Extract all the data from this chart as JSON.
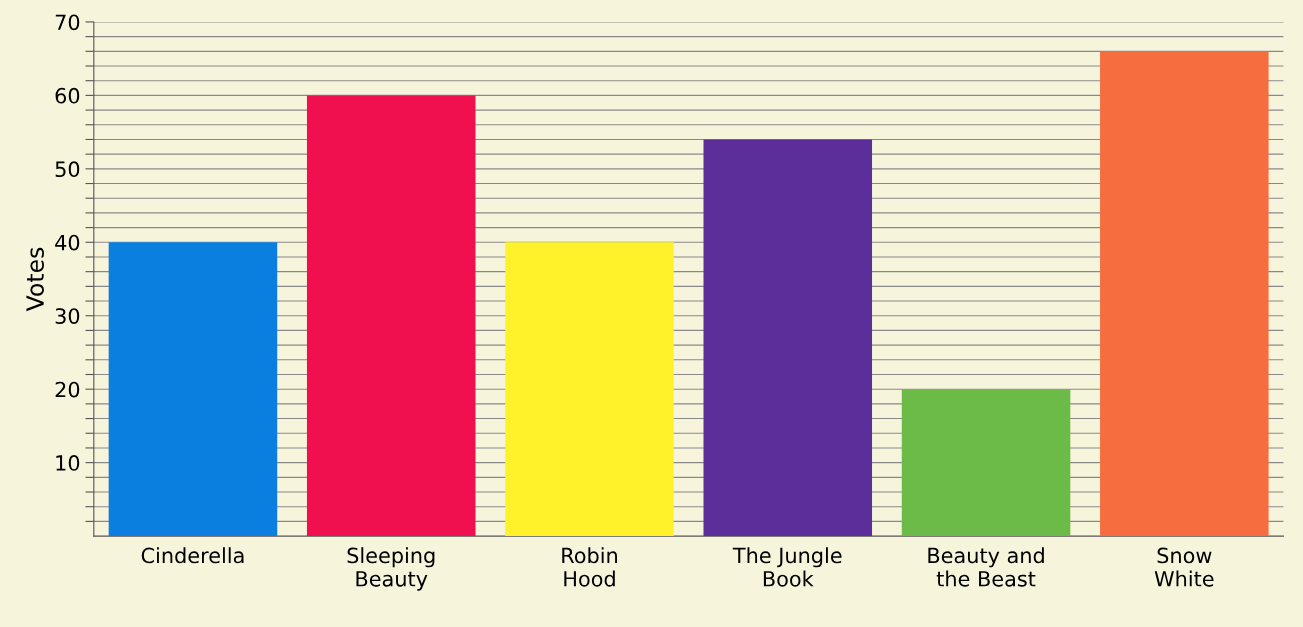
{
  "chart_data": {
    "type": "bar",
    "ylabel": "Votes",
    "categories": [
      "Cinderella",
      "Sleeping\nBeauty",
      "Robin\nHood",
      "The Jungle\nBook",
      "Beauty and\nthe Beast",
      "Snow\nWhite"
    ],
    "values": [
      40,
      60,
      40,
      54,
      20,
      66
    ],
    "colors": [
      "#0a7fe0",
      "#f0104f",
      "#fff22a",
      "#5c2e9a",
      "#6cbb48",
      "#f66d3f"
    ],
    "ylim": [
      0,
      70
    ],
    "yticks": [
      {
        "value": 2,
        "label": null
      },
      {
        "value": 4,
        "label": null
      },
      {
        "value": 6,
        "label": null
      },
      {
        "value": 8,
        "label": null
      },
      10,
      {
        "value": 12,
        "label": null
      },
      {
        "value": 14,
        "label": null
      },
      {
        "value": 16,
        "label": null
      },
      {
        "value": 18,
        "label": null
      },
      20,
      {
        "value": 22,
        "label": null
      },
      {
        "value": 24,
        "label": null
      },
      {
        "value": 26,
        "label": null
      },
      {
        "value": 28,
        "label": null
      },
      30,
      {
        "value": 32,
        "label": null
      },
      {
        "value": 34,
        "label": null
      },
      {
        "value": 36,
        "label": null
      },
      {
        "value": 38,
        "label": null
      },
      40,
      {
        "value": 42,
        "label": null
      },
      {
        "value": 44,
        "label": null
      },
      {
        "value": 46,
        "label": null
      },
      {
        "value": 48,
        "label": null
      },
      50,
      {
        "value": 52,
        "label": null
      },
      {
        "value": 54,
        "label": null
      },
      {
        "value": 56,
        "label": null
      },
      {
        "value": 58,
        "label": null
      },
      60,
      {
        "value": 62,
        "label": null
      },
      {
        "value": 64,
        "label": null
      },
      {
        "value": 66,
        "label": null
      },
      {
        "value": 68,
        "label": null
      },
      70
    ],
    "grid": "y"
  }
}
